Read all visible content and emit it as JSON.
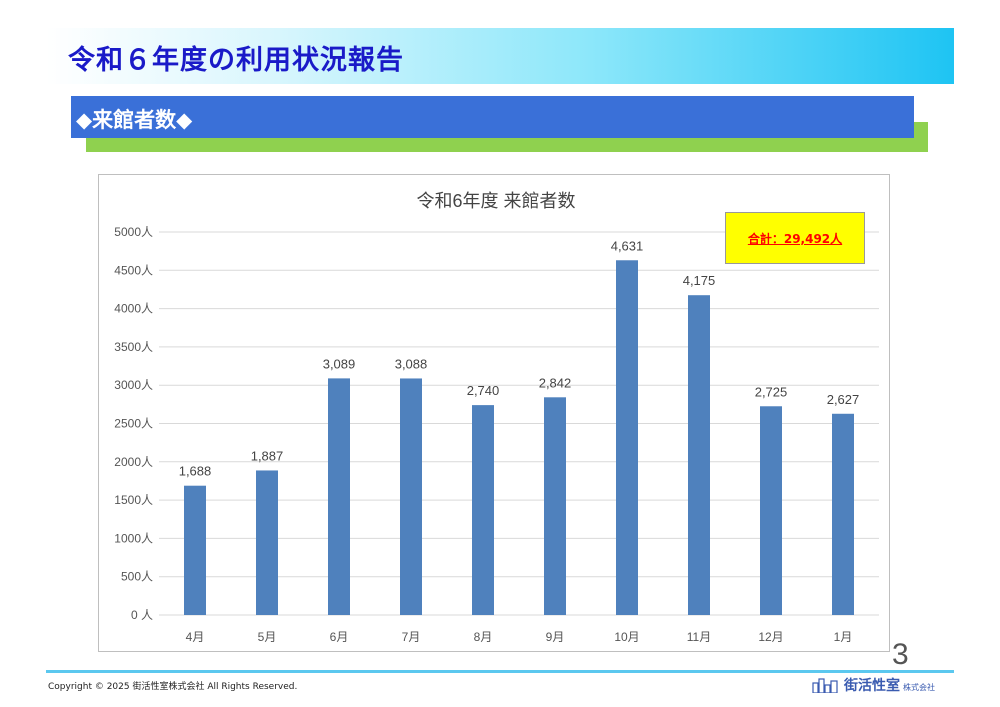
{
  "header": {
    "title": "令和６年度の利用状況報告"
  },
  "section": {
    "title": "◆来館者数◆"
  },
  "chart_data": {
    "type": "bar",
    "title": "令和6年度 来館者数",
    "categories": [
      "4月",
      "5月",
      "6月",
      "7月",
      "8月",
      "9月",
      "10月",
      "11月",
      "12月",
      "1月"
    ],
    "values": [
      1688,
      1887,
      3089,
      3088,
      2740,
      2842,
      4631,
      4175,
      2725,
      2627
    ],
    "data_labels": [
      "1,688",
      "1,887",
      "3,089",
      "3,088",
      "2,740",
      "2,842",
      "4,631",
      "4,175",
      "2,725",
      "2,627"
    ],
    "y_ticks": [
      0,
      500,
      1000,
      1500,
      2000,
      2500,
      3000,
      3500,
      4000,
      4500,
      5000
    ],
    "y_tick_labels": [
      "0 人",
      "500人",
      "1000人",
      "1500人",
      "2000人",
      "2500人",
      "3000人",
      "3500人",
      "4000人",
      "4500人",
      "5000人"
    ],
    "ylim": [
      0,
      5000
    ],
    "grid": true,
    "bar_color": "#4f81bd",
    "annotation": "合計：29,492人"
  },
  "page": {
    "number": "3"
  },
  "footer": {
    "copyright": "Copyright © 2025 街活性室株式会社 All Rights Reserved.",
    "logo_name": "街活性室",
    "logo_sub": "株式会社",
    "logo_icon": "city-buildings-icon"
  }
}
